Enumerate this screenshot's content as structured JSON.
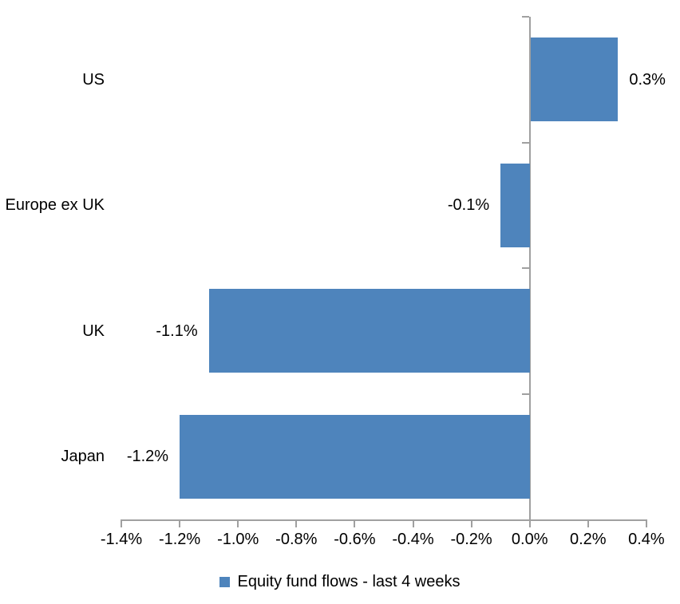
{
  "chart_data": {
    "type": "bar",
    "orientation": "horizontal",
    "title": "",
    "categories": [
      "US",
      "Europe ex UK",
      "UK",
      "Japan"
    ],
    "values": [
      0.3,
      -0.1,
      -1.1,
      -1.2
    ],
    "unit": "%",
    "data_labels": [
      "0.3%",
      "-0.1%",
      "-1.1%",
      "-1.2%"
    ],
    "legend": {
      "label": "Equity fund flows - last 4 weeks",
      "position": "bottom"
    },
    "x_axis": {
      "min": -1.4,
      "max": 0.4,
      "tick_step": 0.2,
      "tick_labels": [
        "-1.4%",
        "-1.2%",
        "-1.0%",
        "-0.8%",
        "-0.6%",
        "-0.4%",
        "-0.2%",
        "0.0%",
        "0.2%",
        "0.4%"
      ]
    },
    "y_axis": {
      "category_boundary_ticks": true
    },
    "grid": false,
    "legend_position": "bottom",
    "colors": {
      "bar": "#4E84BC",
      "axis": "#A0A0A0",
      "text": "#000000",
      "background": "#FFFFFF"
    }
  }
}
